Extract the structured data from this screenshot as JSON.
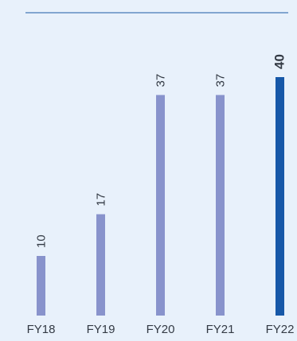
{
  "chart_data": {
    "type": "bar",
    "categories": [
      "FY18",
      "FY19",
      "FY20",
      "FY21",
      "FY22"
    ],
    "values": [
      10,
      17,
      37,
      37,
      40
    ],
    "highlight_index": 4,
    "colors": {
      "bar": "#8893cc",
      "highlight_bar": "#1658a8",
      "label": "#333a44",
      "highlight_label": "#1658a8",
      "rule": "#1a5aa6",
      "background": "#e8f1fb"
    },
    "value_labels": "rotated vertical above bars",
    "grid": false,
    "legend": "none",
    "ylim": [
      0,
      40
    ]
  }
}
